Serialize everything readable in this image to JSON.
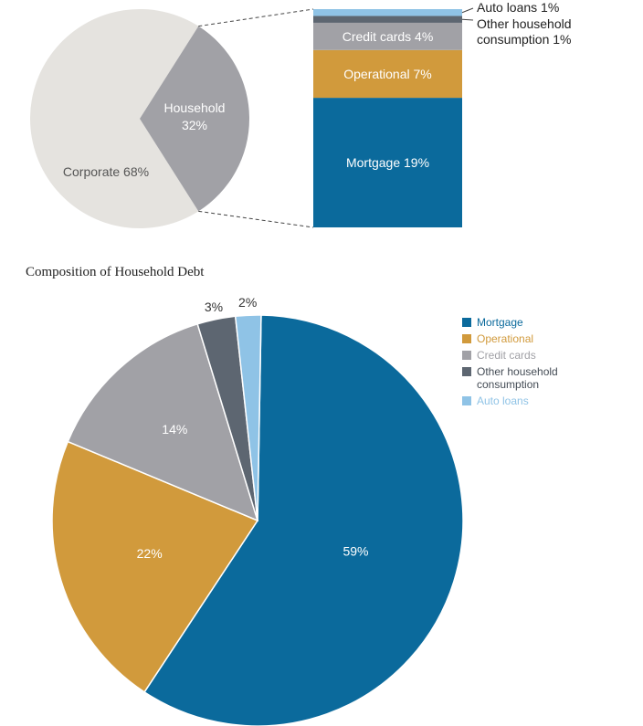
{
  "chart_data": [
    {
      "type": "pie",
      "title": "",
      "slices": [
        {
          "label": "Corporate 68%",
          "value": 68,
          "color": "#e5e3df"
        },
        {
          "label_lines": [
            "Household",
            "32%"
          ],
          "value": 32,
          "color": "#a1a1a6"
        }
      ]
    },
    {
      "type": "bar",
      "stacked": true,
      "title": "",
      "segments": [
        {
          "label": "Mortgage 19%",
          "value": 19,
          "color": "#0b6a9c",
          "text_color": "#ffffff",
          "inside": true
        },
        {
          "label": "Operational 7%",
          "value": 7,
          "color": "#d19a3c",
          "text_color": "#ffffff",
          "inside": true
        },
        {
          "label": "Credit cards 4%",
          "value": 4,
          "color": "#a1a1a6",
          "text_color": "#ffffff",
          "inside": true
        },
        {
          "label_lines": [
            "Other household",
            "consumption 1%"
          ],
          "value": 1,
          "color": "#5d6671",
          "text_color": "#222222",
          "inside": false
        },
        {
          "label": "Auto loans 1%",
          "value": 1,
          "color": "#8fc3e6",
          "text_color": "#222222",
          "inside": false
        }
      ]
    },
    {
      "type": "pie",
      "title": "Composition of Household Debt",
      "slices": [
        {
          "name": "Mortgage",
          "value": 59,
          "label": "59%",
          "color": "#0b6a9c"
        },
        {
          "name": "Operational",
          "value": 22,
          "label": "22%",
          "color": "#d19a3c"
        },
        {
          "name": "Credit cards",
          "value": 14,
          "label": "14%",
          "color": "#a1a1a6"
        },
        {
          "name": "Other household consumption",
          "value": 3,
          "label": "3%",
          "color": "#5d6671"
        },
        {
          "name": "Auto loans",
          "value": 2,
          "label": "2%",
          "color": "#8fc3e6"
        }
      ],
      "legend": {
        "position": "right",
        "items": [
          {
            "label": "Mortgage",
            "color": "#0b6a9c"
          },
          {
            "label": "Operational",
            "color": "#d19a3c"
          },
          {
            "label": "Credit cards",
            "color": "#a1a1a6"
          },
          {
            "label": "Other household consumption",
            "color": "#5d6671"
          },
          {
            "label": "Auto loans",
            "color": "#8fc3e6"
          }
        ]
      }
    }
  ]
}
